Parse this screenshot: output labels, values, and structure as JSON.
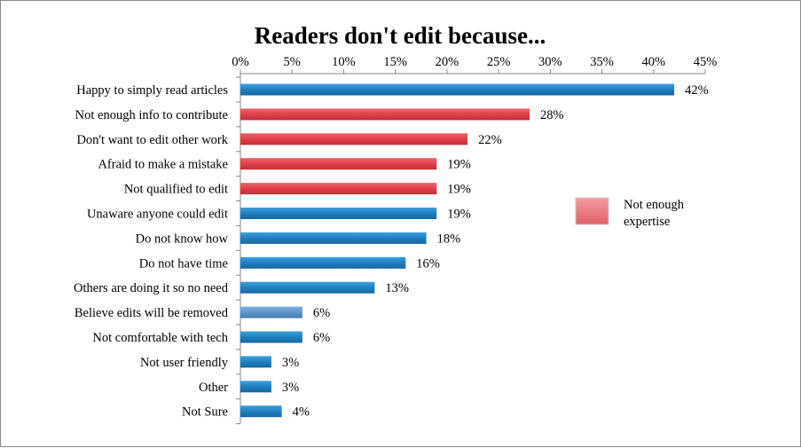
{
  "chart_data": {
    "type": "bar",
    "orientation": "horizontal",
    "title": "Readers don't edit because...",
    "xlabel": "",
    "ylabel": "",
    "xlim": [
      0,
      45
    ],
    "x_ticks": [
      0,
      5,
      10,
      15,
      20,
      25,
      30,
      35,
      40,
      45
    ],
    "x_tick_labels": [
      "0%",
      "5%",
      "10%",
      "15%",
      "20%",
      "25%",
      "30%",
      "35%",
      "40%",
      "45%"
    ],
    "x_axis_position": "top",
    "grid": false,
    "categories": [
      "Happy to simply read articles",
      "Not enough info to contribute",
      "Don't want to edit other work",
      "Afraid to make a mistake",
      "Not qualified to edit",
      "Unaware anyone could edit",
      "Do not know how",
      "Do not have time",
      "Others are doing it so no need",
      "Believe edits will be removed",
      "Not comfortable with tech",
      "Not user friendly",
      "Other",
      "Not Sure"
    ],
    "values": [
      42,
      28,
      22,
      19,
      19,
      19,
      18,
      16,
      13,
      6,
      6,
      3,
      3,
      4
    ],
    "data_labels": [
      "42%",
      "28%",
      "22%",
      "19%",
      "19%",
      "19%",
      "18%",
      "16%",
      "13%",
      "6%",
      "6%",
      "3%",
      "3%",
      "4%"
    ],
    "bar_groups": [
      "default",
      "expertise",
      "expertise",
      "expertise",
      "expertise",
      "default",
      "default",
      "default",
      "default",
      "highlight",
      "default",
      "default",
      "default",
      "default"
    ],
    "colors": {
      "default": "#1f7fc1",
      "expertise": "#e0404a",
      "highlight": "#5b97c9"
    },
    "legend": {
      "position": "right",
      "entries": [
        {
          "label_line1": "Not enough",
          "label_line2": "expertise",
          "color": "#e0404a"
        }
      ]
    }
  }
}
